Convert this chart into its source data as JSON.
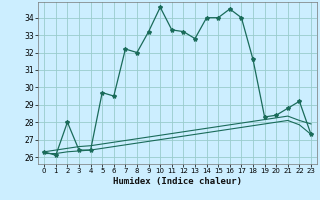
{
  "xlabel": "Humidex (Indice chaleur)",
  "bg_color": "#cceeff",
  "grid_color": "#99cccc",
  "line_color": "#1a6b5a",
  "xlim": [
    -0.5,
    23.5
  ],
  "ylim": [
    25.6,
    34.9
  ],
  "yticks": [
    26,
    27,
    28,
    29,
    30,
    31,
    32,
    33,
    34
  ],
  "xticks": [
    0,
    1,
    2,
    3,
    4,
    5,
    6,
    7,
    8,
    9,
    10,
    11,
    12,
    13,
    14,
    15,
    16,
    17,
    18,
    19,
    20,
    21,
    22,
    23
  ],
  "curve1_x": [
    0,
    1,
    2,
    3,
    4,
    5,
    6,
    7,
    8,
    9,
    10,
    11,
    12,
    13,
    14,
    15,
    16,
    17,
    18,
    19,
    20,
    21,
    22,
    23
  ],
  "curve1_y": [
    26.3,
    26.1,
    28.0,
    26.4,
    26.4,
    29.7,
    29.5,
    32.2,
    32.0,
    33.2,
    34.6,
    33.3,
    33.2,
    32.8,
    34.0,
    34.0,
    34.5,
    34.0,
    31.6,
    28.3,
    28.4,
    28.8,
    29.2,
    27.3
  ],
  "curve2_x": [
    0,
    1,
    2,
    3,
    4,
    5,
    6,
    7,
    8,
    9,
    10,
    11,
    12,
    13,
    14,
    15,
    16,
    17,
    18,
    19,
    20,
    21,
    22,
    23
  ],
  "curve2_y": [
    26.3,
    26.4,
    26.5,
    26.6,
    26.65,
    26.75,
    26.85,
    26.95,
    27.05,
    27.15,
    27.25,
    27.35,
    27.45,
    27.55,
    27.65,
    27.75,
    27.85,
    27.95,
    28.05,
    28.15,
    28.25,
    28.35,
    28.1,
    27.9
  ],
  "curve3_x": [
    0,
    1,
    2,
    3,
    4,
    5,
    6,
    7,
    8,
    9,
    10,
    11,
    12,
    13,
    14,
    15,
    16,
    17,
    18,
    19,
    20,
    21,
    22,
    23
  ],
  "curve3_y": [
    26.2,
    26.2,
    26.3,
    26.35,
    26.4,
    26.5,
    26.6,
    26.7,
    26.8,
    26.9,
    27.0,
    27.1,
    27.2,
    27.3,
    27.4,
    27.5,
    27.6,
    27.7,
    27.8,
    27.9,
    28.0,
    28.1,
    27.85,
    27.3
  ]
}
